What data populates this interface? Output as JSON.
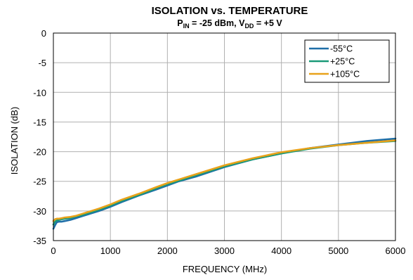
{
  "chart_data": {
    "type": "line",
    "title": "ISOLATION vs. TEMPERATURE",
    "subtitle": {
      "p_main": "P",
      "p_sub": "IN",
      "p_value": " = -25 dBm, V",
      "v_sub": "DD",
      "v_value": " = +5 V"
    },
    "xlabel": "FREQUENCY (MHz)",
    "ylabel": "ISOLATION (dB)",
    "xlim": [
      0,
      6000
    ],
    "ylim": [
      -35,
      0
    ],
    "xticks": [
      0,
      1000,
      2000,
      3000,
      4000,
      5000,
      6000
    ],
    "yticks": [
      0,
      -5,
      -10,
      -15,
      -20,
      -25,
      -30,
      -35
    ],
    "xtick_labels": [
      "0",
      "1000",
      "2000",
      "3000",
      "4000",
      "5000",
      "6000"
    ],
    "ytick_labels": [
      "0",
      "-5",
      "-10",
      "-15",
      "-20",
      "-25",
      "-30",
      "-35"
    ],
    "grid": true,
    "legend_position": "top-right",
    "series": [
      {
        "name": "-55°C",
        "color": "#1f6fa8",
        "x": [
          0,
          30,
          60,
          100,
          150,
          200,
          300,
          400,
          500,
          600,
          800,
          1000,
          1200,
          1500,
          1800,
          2000,
          2200,
          2500,
          3000,
          3500,
          4000,
          4500,
          5000,
          5500,
          6000
        ],
        "y": [
          -33.0,
          -32.4,
          -31.9,
          -31.8,
          -31.8,
          -31.7,
          -31.5,
          -31.2,
          -30.9,
          -30.6,
          -30.0,
          -29.3,
          -28.5,
          -27.4,
          -26.4,
          -25.7,
          -25.0,
          -24.2,
          -22.6,
          -21.3,
          -20.3,
          -19.4,
          -18.8,
          -18.2,
          -17.8
        ]
      },
      {
        "name": "+25°C",
        "color": "#1a9978",
        "x": [
          0,
          30,
          60,
          100,
          150,
          200,
          300,
          400,
          500,
          600,
          800,
          1000,
          1200,
          1500,
          1800,
          2000,
          2200,
          2500,
          3000,
          3500,
          4000,
          4500,
          5000,
          5500,
          6000
        ],
        "y": [
          -32.3,
          -31.8,
          -31.6,
          -31.5,
          -31.4,
          -31.3,
          -31.2,
          -30.9,
          -30.7,
          -30.4,
          -29.8,
          -29.1,
          -28.3,
          -27.3,
          -26.2,
          -25.5,
          -24.9,
          -24.0,
          -22.5,
          -21.3,
          -20.3,
          -19.5,
          -18.9,
          -18.5,
          -18.2
        ]
      },
      {
        "name": "+105°C",
        "color": "#e8a21a",
        "x": [
          0,
          30,
          60,
          100,
          150,
          200,
          300,
          400,
          500,
          600,
          800,
          1000,
          1200,
          1500,
          1800,
          2000,
          2200,
          2500,
          3000,
          3500,
          4000,
          4500,
          5000,
          5500,
          6000
        ],
        "y": [
          -31.7,
          -31.4,
          -31.3,
          -31.3,
          -31.2,
          -31.1,
          -31.0,
          -30.8,
          -30.5,
          -30.2,
          -29.6,
          -28.9,
          -28.1,
          -27.1,
          -26.0,
          -25.3,
          -24.7,
          -23.8,
          -22.3,
          -21.1,
          -20.1,
          -19.4,
          -18.9,
          -18.5,
          -18.1
        ]
      }
    ]
  }
}
